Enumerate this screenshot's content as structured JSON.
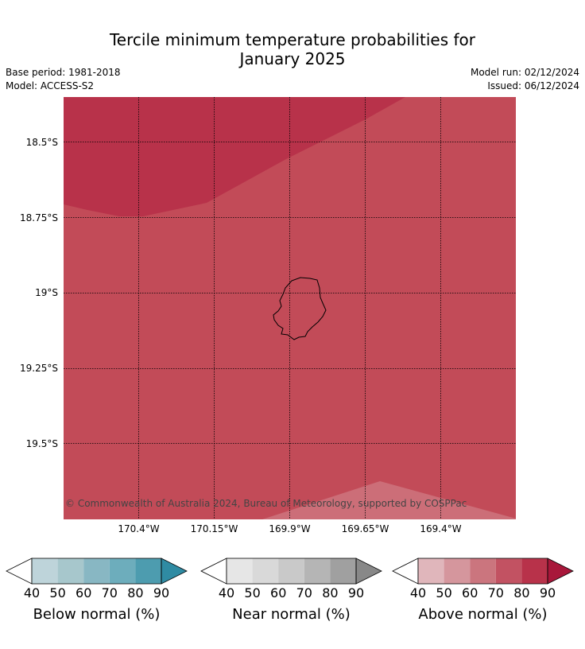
{
  "header": {
    "title_line1": "Tercile minimum temperature probabilities for",
    "title_line2": "January 2025",
    "base_period": "Base period: 1981-2018",
    "model": "Model: ACCESS-S2",
    "model_run": "Model run: 02/12/2024",
    "issued": "Issued: 06/12/2024"
  },
  "map": {
    "latitude_labels": [
      "18.5°S",
      "18.75°S",
      "19°S",
      "19.25°S",
      "19.5°S"
    ],
    "longitude_labels": [
      "170.4°W",
      "170.15°W",
      "169.9°W",
      "169.65°W",
      "169.4°W"
    ],
    "copyright": "© Commonwealth of Australia 2024, Bureau of Meteorology, supported by COSPPac",
    "colors": {
      "above_80_90": "#b8324a",
      "above_70_80": "#c24b58",
      "above_60_70": "#cc6e78",
      "coastline": "#000000"
    }
  },
  "colorbars": [
    {
      "title": "Below normal (%)",
      "ticks": [
        "40",
        "50",
        "60",
        "70",
        "80",
        "90"
      ],
      "colors": [
        "#bed4da",
        "#a7c7cc",
        "#88b7c3",
        "#6dadbc",
        "#4d9caf",
        "#2f8ba3"
      ]
    },
    {
      "title": "Near normal (%)",
      "ticks": [
        "40",
        "50",
        "60",
        "70",
        "80",
        "90"
      ],
      "colors": [
        "#e6e6e6",
        "#d9d9d9",
        "#c9c9c9",
        "#b5b5b5",
        "#a0a0a0",
        "#888888"
      ]
    },
    {
      "title": "Above normal (%)",
      "ticks": [
        "40",
        "50",
        "60",
        "70",
        "80",
        "90"
      ],
      "colors": [
        "#e0b6bb",
        "#d5969d",
        "#cb757e",
        "#c25262",
        "#b8324a",
        "#a8173a"
      ]
    }
  ]
}
